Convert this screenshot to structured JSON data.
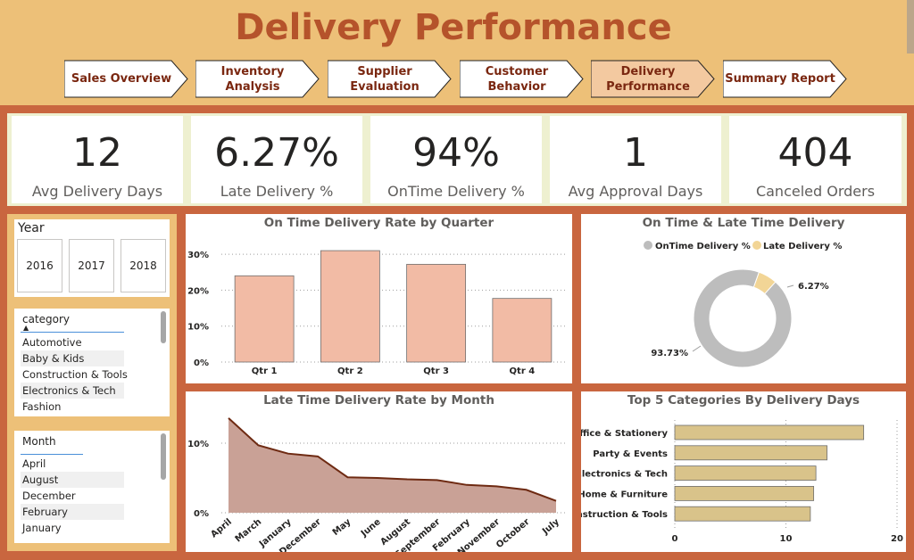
{
  "header": {
    "title": "Delivery Performance",
    "nav": [
      {
        "label": "Sales Overview",
        "active": false
      },
      {
        "label": "Inventory Analysis",
        "active": false
      },
      {
        "label": "Supplier Evaluation",
        "active": false
      },
      {
        "label": "Customer Behavior",
        "active": false
      },
      {
        "label": "Delivery Performance",
        "active": true
      },
      {
        "label": "Summary Report",
        "active": false
      }
    ]
  },
  "kpis": [
    {
      "value": "12",
      "label": "Avg Delivery Days"
    },
    {
      "value": "6.27%",
      "label": "Late Delivery %"
    },
    {
      "value": "94%",
      "label": "OnTime Delivery %"
    },
    {
      "value": "1",
      "label": "Avg Approval Days"
    },
    {
      "value": "404",
      "label": "Canceled Orders"
    }
  ],
  "slicers": {
    "year": {
      "title": "Year",
      "options": [
        "2016",
        "2017",
        "2018"
      ]
    },
    "category": {
      "title": "category",
      "items": [
        "Automotive",
        "Baby & Kids",
        "Construction & Tools",
        "Electronics & Tech",
        "Fashion"
      ]
    },
    "month": {
      "title": "Month",
      "items": [
        "April",
        "August",
        "December",
        "February",
        "January"
      ]
    }
  },
  "colors": {
    "bar_fill": "#f2bba5",
    "area_fill": "#c9a196",
    "area_line": "#6e2a12",
    "donut_ontime": "#bdbdbd",
    "donut_late": "#f2d596",
    "hbar_fill": "#d9c38a"
  },
  "chart_data": [
    {
      "type": "bar",
      "title": "On Time Delivery Rate by Quarter",
      "categories": [
        "Qtr 1",
        "Qtr 2",
        "Qtr 3",
        "Qtr 4"
      ],
      "values": [
        24,
        31,
        27.2,
        17.7
      ],
      "ylim": [
        0,
        33
      ],
      "yticks": [
        "0%",
        "10%",
        "20%",
        "30%"
      ],
      "grid": true
    },
    {
      "type": "pie",
      "title": "On Time & Late Time Delivery",
      "legend": [
        "OnTime Delivery %",
        "Late Delivery %"
      ],
      "legend_position": "top",
      "values": [
        93.73,
        6.27
      ],
      "labels": [
        "93.73%",
        "6.27%"
      ]
    },
    {
      "type": "area",
      "title": "Late Time Delivery Rate by Month",
      "categories": [
        "April",
        "March",
        "January",
        "December",
        "May",
        "June",
        "August",
        "September",
        "February",
        "November",
        "October",
        "July"
      ],
      "values": [
        13.6,
        9.7,
        8.5,
        8.1,
        5.1,
        5.0,
        4.8,
        4.7,
        4.0,
        3.8,
        3.3,
        1.7
      ],
      "ylim": [
        0,
        15
      ],
      "yticks": [
        "0%",
        "10%"
      ],
      "grid": true
    },
    {
      "type": "bar",
      "orientation": "horizontal",
      "title": "Top 5 Categories By Delivery Days",
      "categories": [
        "Office & Stationery",
        "Party & Events",
        "Electronics & Tech",
        "Home & Furniture",
        "Construction & Tools"
      ],
      "values": [
        17,
        13.7,
        12.7,
        12.5,
        12.2
      ],
      "xlim": [
        0,
        20
      ],
      "xticks": [
        "0",
        "10",
        "20"
      ],
      "grid": true
    }
  ]
}
